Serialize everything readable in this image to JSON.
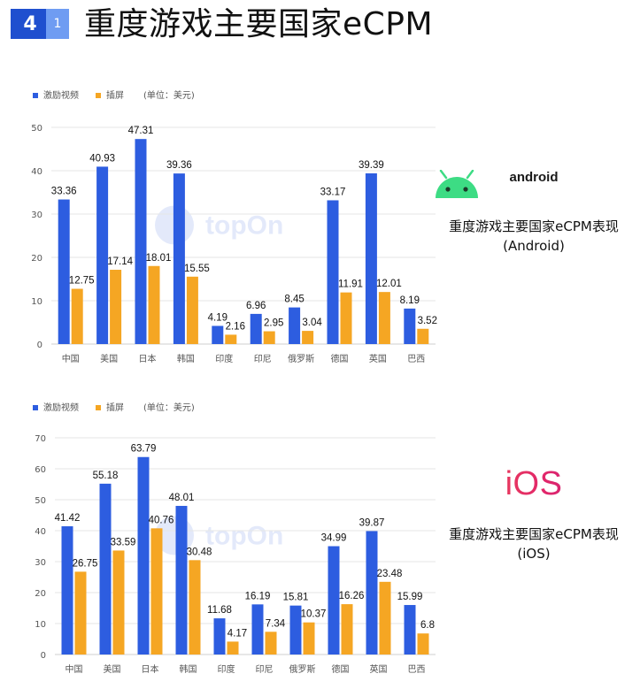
{
  "header": {
    "section_number": "4",
    "sub_number": "1",
    "title": "重度游戏主要国家eCPM"
  },
  "platforms": [
    {
      "logo_text": "android",
      "caption_line1": "重度游戏主要国家eCPM表现",
      "caption_line2": "(Android)"
    },
    {
      "logo_text": "iOS",
      "caption_line1": "重度游戏主要国家eCPM表现",
      "caption_line2": "(iOS)"
    }
  ],
  "watermark": "topOn",
  "colors": {
    "series_blue": "#2d5de0",
    "series_orange": "#f5a623",
    "grid": "#e6e6e6",
    "axis_text": "#555555"
  },
  "chart_data": [
    {
      "type": "bar",
      "unit_note": "(单位：美元)",
      "categories": [
        "中国",
        "美国",
        "日本",
        "韩国",
        "印度",
        "印尼",
        "俄罗斯",
        "德国",
        "英国",
        "巴西"
      ],
      "series": [
        {
          "name": "激励视频",
          "values": [
            33.36,
            40.93,
            47.31,
            39.36,
            4.19,
            6.96,
            8.45,
            33.17,
            39.39,
            8.19
          ]
        },
        {
          "name": "插屏",
          "values": [
            12.75,
            17.14,
            18.01,
            15.55,
            2.16,
            2.95,
            3.04,
            11.91,
            12.01,
            3.52
          ]
        }
      ],
      "ylim": [
        0,
        50
      ],
      "yticks": [
        0,
        10,
        20,
        30,
        40,
        50
      ],
      "grid": true,
      "legend": "top-left"
    },
    {
      "type": "bar",
      "unit_note": "(单位：美元)",
      "categories": [
        "中国",
        "美国",
        "日本",
        "韩国",
        "印度",
        "印尼",
        "俄罗斯",
        "德国",
        "英国",
        "巴西"
      ],
      "series": [
        {
          "name": "激励视频",
          "values": [
            41.42,
            55.18,
            63.79,
            48.01,
            11.68,
            16.19,
            15.81,
            34.99,
            39.87,
            15.99
          ]
        },
        {
          "name": "插屏",
          "values": [
            26.75,
            33.59,
            40.76,
            30.48,
            4.17,
            7.34,
            10.37,
            16.26,
            23.48,
            6.8
          ]
        }
      ],
      "ylim": [
        0,
        70
      ],
      "yticks": [
        0,
        10,
        20,
        30,
        40,
        50,
        60,
        70
      ],
      "grid": true,
      "legend": "top-left"
    }
  ]
}
